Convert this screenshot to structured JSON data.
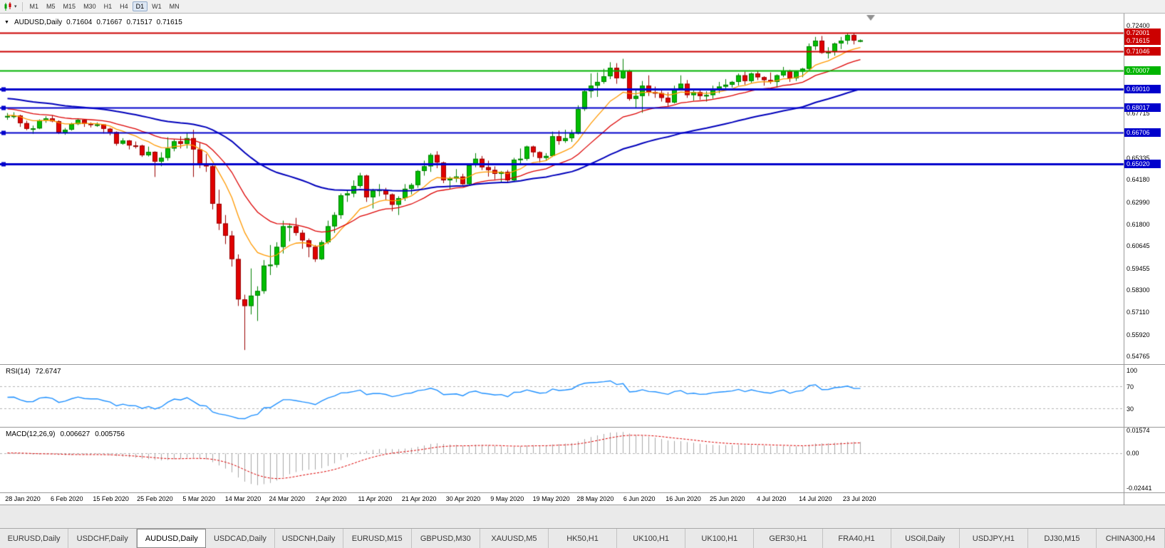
{
  "toolbar": {
    "timeframes": [
      "M1",
      "M5",
      "M15",
      "M30",
      "H1",
      "H4",
      "D1",
      "W1",
      "MN"
    ],
    "active_timeframe": "D1"
  },
  "chart": {
    "symbol_header": "AUDUSD,Daily",
    "ohlc": {
      "open": "0.71604",
      "high": "0.71667",
      "low": "0.71517",
      "close": "0.71615"
    }
  },
  "rsi": {
    "title": "RSI(14)",
    "value": "72.6747",
    "axis_labels": [
      "100",
      "70",
      "30"
    ]
  },
  "macd": {
    "title": "MACD(12,26,9)",
    "main": "0.006627",
    "signal": "0.005756",
    "axis_labels": [
      "0.01574",
      "0.00",
      "-0.02441"
    ]
  },
  "price_axis": {
    "black_labels": [
      "0.72400",
      "0.67715",
      "0.65335",
      "0.64180",
      "0.62990",
      "0.61800",
      "0.60645",
      "0.59455",
      "0.58300",
      "0.57110",
      "0.55920",
      "0.54765"
    ]
  },
  "time_axis": {
    "dates": [
      "28 Jan 2020",
      "6 Feb 2020",
      "15 Feb 2020",
      "25 Feb 2020",
      "5 Mar 2020",
      "14 Mar 2020",
      "24 Mar 2020",
      "2 Apr 2020",
      "11 Apr 2020",
      "21 Apr 2020",
      "30 Apr 2020",
      "9 May 2020",
      "19 May 2020",
      "28 May 2020",
      "6 Jun 2020",
      "16 Jun 2020",
      "25 Jun 2020",
      "4 Jul 2020",
      "14 Jul 2020",
      "23 Jul 2020"
    ]
  },
  "tabs": {
    "items": [
      "EURUSD,Daily",
      "USDCHF,Daily",
      "AUDUSD,Daily",
      "USDCAD,Daily",
      "USDCNH,Daily",
      "EURUSD,M15",
      "GBPUSD,M30",
      "XAUUSD,M5",
      "HK50,H1",
      "UK100,H1",
      "UK100,H1",
      "GER30,H1",
      "FRA40,H1",
      "USOil,Daily",
      "USDJPY,H1",
      "DJ30,M15",
      "CHINA300,H4"
    ],
    "active_index": 2
  },
  "chart_data": {
    "type": "candlestick",
    "symbol": "AUDUSD",
    "timeframe": "Daily",
    "price_range": {
      "top": 0.724,
      "bottom": 0.54765
    },
    "ohlc_format": [
      "open",
      "high",
      "low",
      "close"
    ],
    "candles_ohlc": [
      [
        0.6755,
        0.6774,
        0.6738,
        0.6758
      ],
      [
        0.6758,
        0.6778,
        0.6745,
        0.676
      ],
      [
        0.676,
        0.6765,
        0.67,
        0.672
      ],
      [
        0.672,
        0.6733,
        0.6682,
        0.669
      ],
      [
        0.669,
        0.6707,
        0.6663,
        0.6692
      ],
      [
        0.6692,
        0.674,
        0.6688,
        0.6735
      ],
      [
        0.6735,
        0.6757,
        0.6722,
        0.6745
      ],
      [
        0.6745,
        0.6761,
        0.6725,
        0.673
      ],
      [
        0.673,
        0.6735,
        0.6662,
        0.667
      ],
      [
        0.667,
        0.6694,
        0.6658,
        0.6685
      ],
      [
        0.6685,
        0.6722,
        0.668,
        0.6715
      ],
      [
        0.6715,
        0.6745,
        0.671,
        0.6737
      ],
      [
        0.6737,
        0.6742,
        0.67,
        0.6717
      ],
      [
        0.6717,
        0.6724,
        0.6697,
        0.6712
      ],
      [
        0.6712,
        0.6724,
        0.67,
        0.6713
      ],
      [
        0.6713,
        0.6715,
        0.6665,
        0.669
      ],
      [
        0.669,
        0.6695,
        0.6655,
        0.6672
      ],
      [
        0.6672,
        0.6676,
        0.66,
        0.6611
      ],
      [
        0.6611,
        0.664,
        0.6605,
        0.6627
      ],
      [
        0.6627,
        0.663,
        0.658,
        0.6601
      ],
      [
        0.6601,
        0.6622,
        0.6585,
        0.66
      ],
      [
        0.66,
        0.6605,
        0.654,
        0.6549
      ],
      [
        0.6549,
        0.6595,
        0.6542,
        0.6567
      ],
      [
        0.6567,
        0.657,
        0.6433,
        0.6515
      ],
      [
        0.6515,
        0.6565,
        0.649,
        0.6535
      ],
      [
        0.6535,
        0.6645,
        0.652,
        0.6585
      ],
      [
        0.6585,
        0.6635,
        0.657,
        0.6623
      ],
      [
        0.6623,
        0.665,
        0.6585,
        0.661
      ],
      [
        0.661,
        0.667,
        0.6585,
        0.664
      ],
      [
        0.664,
        0.6685,
        0.6433,
        0.658
      ],
      [
        0.658,
        0.6615,
        0.648,
        0.65
      ],
      [
        0.65,
        0.6555,
        0.646,
        0.649
      ],
      [
        0.649,
        0.6495,
        0.626,
        0.629
      ],
      [
        0.629,
        0.6365,
        0.615,
        0.6185
      ],
      [
        0.6185,
        0.623,
        0.6075,
        0.612
      ],
      [
        0.612,
        0.6145,
        0.5955,
        0.5995
      ],
      [
        0.5995,
        0.602,
        0.5745,
        0.578
      ],
      [
        0.578,
        0.5805,
        0.551,
        0.5745
      ],
      [
        0.5745,
        0.5945,
        0.57,
        0.58
      ],
      [
        0.58,
        0.585,
        0.5665,
        0.5825
      ],
      [
        0.5825,
        0.599,
        0.581,
        0.596
      ],
      [
        0.596,
        0.607,
        0.591,
        0.5965
      ],
      [
        0.5965,
        0.6085,
        0.595,
        0.606
      ],
      [
        0.606,
        0.62,
        0.6025,
        0.617
      ],
      [
        0.617,
        0.6185,
        0.609,
        0.617
      ],
      [
        0.617,
        0.6215,
        0.612,
        0.6135
      ],
      [
        0.6135,
        0.615,
        0.605,
        0.6095
      ],
      [
        0.6095,
        0.6105,
        0.6005,
        0.606
      ],
      [
        0.606,
        0.607,
        0.598,
        0.5995
      ],
      [
        0.5995,
        0.6095,
        0.599,
        0.6085
      ],
      [
        0.6085,
        0.62,
        0.6075,
        0.617
      ],
      [
        0.617,
        0.6245,
        0.6135,
        0.623
      ],
      [
        0.623,
        0.6345,
        0.621,
        0.6335
      ],
      [
        0.6335,
        0.6365,
        0.63,
        0.6345
      ],
      [
        0.6345,
        0.6415,
        0.6325,
        0.6385
      ],
      [
        0.6385,
        0.6455,
        0.6375,
        0.644
      ],
      [
        0.644,
        0.6445,
        0.63,
        0.6325
      ],
      [
        0.6325,
        0.637,
        0.6265,
        0.636
      ],
      [
        0.636,
        0.6395,
        0.633,
        0.6365
      ],
      [
        0.6365,
        0.6375,
        0.631,
        0.634
      ],
      [
        0.634,
        0.6345,
        0.625,
        0.6285
      ],
      [
        0.6285,
        0.633,
        0.623,
        0.632
      ],
      [
        0.632,
        0.6395,
        0.6305,
        0.637
      ],
      [
        0.637,
        0.64,
        0.634,
        0.639
      ],
      [
        0.639,
        0.647,
        0.6375,
        0.6465
      ],
      [
        0.6465,
        0.652,
        0.644,
        0.649
      ],
      [
        0.649,
        0.656,
        0.646,
        0.655
      ],
      [
        0.655,
        0.657,
        0.648,
        0.651
      ],
      [
        0.651,
        0.6515,
        0.64,
        0.6415
      ],
      [
        0.6415,
        0.6435,
        0.637,
        0.6425
      ],
      [
        0.6425,
        0.6475,
        0.6405,
        0.6435
      ],
      [
        0.6435,
        0.645,
        0.639,
        0.6395
      ],
      [
        0.6395,
        0.65,
        0.6385,
        0.6495
      ],
      [
        0.6495,
        0.656,
        0.6485,
        0.653
      ],
      [
        0.653,
        0.6545,
        0.647,
        0.6485
      ],
      [
        0.6485,
        0.652,
        0.6435,
        0.647
      ],
      [
        0.647,
        0.649,
        0.642,
        0.645
      ],
      [
        0.645,
        0.6465,
        0.64,
        0.646
      ],
      [
        0.646,
        0.647,
        0.6405,
        0.6415
      ],
      [
        0.6415,
        0.6535,
        0.641,
        0.6525
      ],
      [
        0.6525,
        0.6585,
        0.6505,
        0.653
      ],
      [
        0.653,
        0.66,
        0.652,
        0.6595
      ],
      [
        0.6595,
        0.66,
        0.654,
        0.6565
      ],
      [
        0.6565,
        0.657,
        0.651,
        0.6535
      ],
      [
        0.6535,
        0.656,
        0.652,
        0.6545
      ],
      [
        0.6545,
        0.6675,
        0.654,
        0.665
      ],
      [
        0.665,
        0.668,
        0.6605,
        0.6625
      ],
      [
        0.6625,
        0.6685,
        0.6615,
        0.664
      ],
      [
        0.664,
        0.6685,
        0.662,
        0.6665
      ],
      [
        0.6665,
        0.6815,
        0.666,
        0.6795
      ],
      [
        0.6795,
        0.69,
        0.6785,
        0.689
      ],
      [
        0.689,
        0.6985,
        0.6855,
        0.692
      ],
      [
        0.692,
        0.699,
        0.686,
        0.694
      ],
      [
        0.694,
        0.701,
        0.693,
        0.697
      ],
      [
        0.697,
        0.7045,
        0.6955,
        0.7015
      ],
      [
        0.7015,
        0.704,
        0.693,
        0.696
      ],
      [
        0.696,
        0.7063,
        0.6955,
        0.7
      ],
      [
        0.7,
        0.7005,
        0.684,
        0.685
      ],
      [
        0.685,
        0.6905,
        0.68,
        0.6865
      ],
      [
        0.6865,
        0.6945,
        0.6775,
        0.692
      ],
      [
        0.692,
        0.6975,
        0.6865,
        0.6885
      ],
      [
        0.6885,
        0.6915,
        0.6855,
        0.688
      ],
      [
        0.688,
        0.69,
        0.6835,
        0.6855
      ],
      [
        0.6855,
        0.6885,
        0.681,
        0.683
      ],
      [
        0.683,
        0.692,
        0.6825,
        0.6905
      ],
      [
        0.6905,
        0.6975,
        0.6895,
        0.693
      ],
      [
        0.693,
        0.695,
        0.6855,
        0.687
      ],
      [
        0.687,
        0.6905,
        0.684,
        0.6885
      ],
      [
        0.6885,
        0.69,
        0.6845,
        0.6865
      ],
      [
        0.6865,
        0.689,
        0.6835,
        0.687
      ],
      [
        0.687,
        0.692,
        0.685,
        0.69
      ],
      [
        0.69,
        0.694,
        0.688,
        0.6915
      ],
      [
        0.6915,
        0.6955,
        0.69,
        0.6925
      ],
      [
        0.6925,
        0.6945,
        0.691,
        0.694
      ],
      [
        0.694,
        0.6985,
        0.692,
        0.6975
      ],
      [
        0.6975,
        0.6995,
        0.6925,
        0.6945
      ],
      [
        0.6945,
        0.699,
        0.6935,
        0.6985
      ],
      [
        0.6985,
        0.7,
        0.695,
        0.6965
      ],
      [
        0.6965,
        0.697,
        0.692,
        0.695
      ],
      [
        0.695,
        0.699,
        0.693,
        0.694
      ],
      [
        0.694,
        0.698,
        0.691,
        0.6975
      ],
      [
        0.6975,
        0.702,
        0.6965,
        0.7
      ],
      [
        0.7,
        0.7005,
        0.694,
        0.696
      ],
      [
        0.696,
        0.7,
        0.6945,
        0.6995
      ],
      [
        0.6995,
        0.7015,
        0.6965,
        0.701
      ],
      [
        0.701,
        0.7145,
        0.7005,
        0.713
      ],
      [
        0.713,
        0.718,
        0.711,
        0.716
      ],
      [
        0.716,
        0.7185,
        0.709,
        0.7095
      ],
      [
        0.7095,
        0.7125,
        0.7065,
        0.71
      ],
      [
        0.71,
        0.715,
        0.708,
        0.7145
      ],
      [
        0.7145,
        0.718,
        0.7115,
        0.716
      ],
      [
        0.716,
        0.72,
        0.714,
        0.719
      ],
      [
        0.719,
        0.72,
        0.714,
        0.716
      ],
      [
        0.71604,
        0.71667,
        0.71517,
        0.71615
      ]
    ],
    "horizontal_lines": [
      {
        "value": 0.72001,
        "label": "0.72001",
        "color": "#cc0000",
        "width": 2,
        "handle": false
      },
      {
        "value": 0.71046,
        "label": "0.71046",
        "color": "#cc0000",
        "width": 2,
        "handle": false
      },
      {
        "value": 0.70007,
        "label": "0.70007",
        "color": "#00b400",
        "width": 2,
        "handle": false
      },
      {
        "value": 0.6901,
        "label": "0.69010",
        "color": "#0000cc",
        "width": 3,
        "handle": true
      },
      {
        "value": 0.68017,
        "label": "0.68017",
        "color": "#0000cc",
        "width": 2,
        "handle": true
      },
      {
        "value": 0.66706,
        "label": "0.66706",
        "color": "#0000cc",
        "width": 2,
        "handle": true
      },
      {
        "value": 0.6502,
        "label": "0.65020",
        "color": "#0000cc",
        "width": 3,
        "handle": true
      }
    ],
    "bid": {
      "value": 0.71615,
      "label": "0.71615",
      "color": "#cc0000"
    },
    "moving_averages": [
      {
        "period": 10,
        "color": "#ff9900",
        "init": 0.6762,
        "width": 1.3
      },
      {
        "period": 21,
        "color": "#dd0000",
        "init": 0.68,
        "width": 1.3
      },
      {
        "period": 55,
        "color": "#0000bb",
        "init": 0.6855,
        "width": 2
      }
    ],
    "rsi": {
      "period": 14,
      "current": 72.6747,
      "levels": [
        70,
        30
      ],
      "line_color": "#1e90ff"
    },
    "macd": {
      "fast": 12,
      "slow": 26,
      "signal_period": 9,
      "current_main": 0.006627,
      "current_signal": 0.005756,
      "histogram_color": "#a8a8a8",
      "signal_color": "#dd0000",
      "scale": {
        "top": 0.01574,
        "zero": 0.0,
        "bottom": -0.02441
      }
    }
  }
}
